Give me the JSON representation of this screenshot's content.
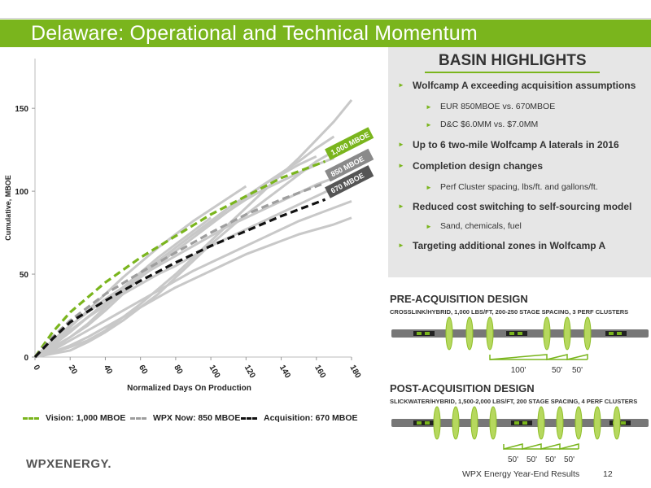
{
  "page": {
    "title": "Delaware: Operational and Technical Momentum",
    "footer": "WPX Energy Year-End Results",
    "page_number": "12",
    "logo": "WPXENERGY."
  },
  "highlights": {
    "heading": "BASIN HIGHLIGHTS",
    "items": [
      {
        "level": "main",
        "text": "Wolfcamp A exceeding acquisition assumptions"
      },
      {
        "level": "sub",
        "text": "EUR 850MBOE vs. 670MBOE"
      },
      {
        "level": "sub",
        "text": "D&C $6.0MM vs. $7.0MM"
      },
      {
        "level": "main",
        "text": "Up to 6 two-mile Wolfcamp A laterals in 2016"
      },
      {
        "level": "main",
        "text": "Completion design changes"
      },
      {
        "level": "sub",
        "text": "Perf Cluster spacing, lbs/ft. and gallons/ft."
      },
      {
        "level": "main",
        "text": "Reduced cost switching to self-sourcing model"
      },
      {
        "level": "sub",
        "text": "Sand, chemicals, fuel"
      },
      {
        "level": "main",
        "text": "Targeting additional zones in Wolfcamp A"
      }
    ]
  },
  "pre_design": {
    "title": "PRE-ACQUISITION DESIGN",
    "subtitle": "CROSSLINK/HYBRID, 1,000 LBS/FT, 200-250 STAGE SPACING, 3 PERF CLUSTERS",
    "labels": [
      "100'",
      "50'",
      "50'"
    ]
  },
  "post_design": {
    "title": "POST-ACQUISITION DESIGN",
    "subtitle": "SLICKWATER/HYBRID, 1,500-2,000 LBS/FT, 200 STAGE SPACING, 4 PERF CLUSTERS",
    "labels": [
      "50'",
      "50'",
      "50'",
      "50'"
    ]
  },
  "colors": {
    "brand_green": "#7ab51d",
    "gray_line": "#c8c8c8",
    "dash_gray": "#9e9e9e",
    "dash_black": "#111111",
    "tag_dark": "#555555",
    "tag_mid": "#8a8a8a"
  },
  "chart_data": {
    "type": "line",
    "xlabel": "Normalized Days On Production",
    "ylabel": "Cumulative, MBOE",
    "xlim": [
      0,
      180
    ],
    "ylim": [
      0,
      180
    ],
    "xticks": [
      0,
      20,
      40,
      60,
      80,
      100,
      120,
      140,
      160,
      180
    ],
    "yticks": [
      0,
      50,
      100,
      150
    ],
    "series": [
      {
        "name": "Vision: 1,000 MBOE",
        "style": "dashed",
        "color": "#7ab51d",
        "x": [
          0,
          10,
          20,
          40,
          60,
          80,
          100,
          120,
          140,
          165
        ],
        "y": [
          0,
          15,
          27,
          45,
          60,
          73,
          86,
          97,
          108,
          118
        ]
      },
      {
        "name": "WPX Now: 850 MBOE",
        "style": "dashed",
        "color": "#9e9e9e",
        "x": [
          0,
          10,
          20,
          40,
          60,
          80,
          100,
          120,
          140,
          165
        ],
        "y": [
          0,
          12,
          22,
          38,
          51,
          63,
          75,
          86,
          95,
          105
        ]
      },
      {
        "name": "Acquisition: 670 MBOE",
        "style": "dashed",
        "color": "#111111",
        "x": [
          0,
          10,
          20,
          40,
          60,
          80,
          100,
          120,
          140,
          165
        ],
        "y": [
          0,
          11,
          21,
          34,
          46,
          57,
          67,
          76,
          85,
          95
        ]
      }
    ],
    "background_wells": [
      {
        "x": [
          0,
          10,
          20,
          30,
          40,
          50,
          60,
          70,
          80,
          90,
          100,
          110,
          120,
          130,
          140,
          150,
          160,
          170,
          180
        ],
        "y": [
          0,
          3,
          6,
          10,
          16,
          24,
          32,
          41,
          50,
          60,
          70,
          80,
          90,
          100,
          110,
          120,
          131,
          142,
          155
        ]
      },
      {
        "x": [
          0,
          10,
          20,
          30,
          40,
          50,
          60,
          70,
          80,
          90,
          100,
          110,
          120,
          130,
          140,
          150,
          160,
          170
        ],
        "y": [
          0,
          8,
          16,
          24,
          32,
          40,
          48,
          56,
          64,
          72,
          80,
          88,
          96,
          104,
          111,
          118,
          126,
          133
        ]
      },
      {
        "x": [
          0,
          10,
          20,
          30,
          40,
          50,
          60,
          70,
          80,
          90,
          100,
          110,
          120,
          130,
          140,
          150,
          160,
          170,
          180
        ],
        "y": [
          0,
          2,
          4,
          9,
          15,
          22,
          30,
          38,
          48,
          58,
          68,
          77,
          86,
          94,
          102,
          110,
          118,
          124,
          132
        ]
      },
      {
        "x": [
          0,
          10,
          20,
          30,
          40,
          50,
          60,
          70,
          80,
          90,
          100,
          110,
          120,
          130,
          140,
          150,
          160,
          170
        ],
        "y": [
          0,
          6,
          12,
          20,
          30,
          40,
          50,
          58,
          66,
          74,
          81,
          88,
          95,
          101,
          106,
          111,
          116,
          120
        ]
      },
      {
        "x": [
          0,
          10,
          20,
          30,
          40,
          50,
          60,
          70,
          80,
          90,
          100,
          110,
          120,
          130,
          140,
          150,
          160,
          170,
          180
        ],
        "y": [
          0,
          8,
          16,
          24,
          31,
          38,
          44,
          50,
          55,
          61,
          67,
          72,
          77,
          82,
          87,
          92,
          97,
          102,
          106
        ]
      },
      {
        "x": [
          0,
          10,
          20,
          30,
          40,
          50,
          60,
          70,
          80,
          90,
          100,
          110,
          120,
          130,
          140,
          150,
          160,
          170,
          180
        ],
        "y": [
          0,
          4,
          10,
          16,
          22,
          28,
          34,
          40,
          46,
          52,
          57,
          62,
          67,
          72,
          77,
          82,
          86,
          90,
          94
        ]
      },
      {
        "x": [
          0,
          10,
          20,
          30,
          40,
          50,
          60,
          70,
          80,
          90,
          100,
          110,
          120,
          130,
          140,
          150,
          160,
          170,
          180
        ],
        "y": [
          0,
          3,
          7,
          12,
          18,
          24,
          30,
          36,
          42,
          47,
          52,
          57,
          62,
          66,
          70,
          74,
          77,
          80,
          84
        ]
      },
      {
        "x": [
          0,
          10,
          20,
          30,
          40,
          50,
          60,
          70,
          80,
          90,
          100,
          110,
          120,
          130,
          140,
          150,
          160,
          170
        ],
        "y": [
          0,
          10,
          19,
          27,
          35,
          42,
          49,
          55,
          61,
          67,
          73,
          79,
          84,
          89,
          94,
          99,
          104,
          108
        ]
      },
      {
        "x": [
          0,
          10,
          20,
          30,
          40,
          50,
          60,
          70,
          80,
          90,
          100,
          110,
          120,
          130,
          140,
          150,
          160
        ],
        "y": [
          0,
          5,
          12,
          19,
          28,
          38,
          48,
          57,
          66,
          74,
          82,
          90,
          97,
          104,
          110,
          116,
          121
        ]
      },
      {
        "x": [
          0,
          10,
          20,
          30,
          40,
          50,
          60,
          70,
          80,
          90,
          100
        ],
        "y": [
          0,
          7,
          15,
          24,
          33,
          42,
          51,
          60,
          68,
          76,
          84
        ]
      },
      {
        "x": [
          0,
          10,
          20,
          30,
          40,
          50,
          60,
          70,
          80,
          90,
          100,
          110,
          120
        ],
        "y": [
          0,
          9,
          18,
          28,
          38,
          48,
          57,
          66,
          74,
          82,
          89,
          96,
          103
        ]
      }
    ],
    "tags": [
      {
        "text": "1,000 MBOE",
        "color": "#7ab51d"
      },
      {
        "text": "850 MBOE",
        "color": "#8a8a8a"
      },
      {
        "text": "670 MBOE",
        "color": "#555555"
      }
    ]
  }
}
